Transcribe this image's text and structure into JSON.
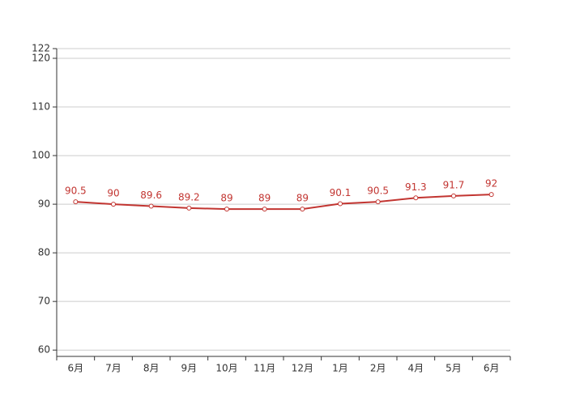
{
  "chart_data": {
    "type": "line",
    "categories": [
      "6月",
      "7月",
      "8月",
      "9月",
      "10月",
      "11月",
      "12月",
      "1月",
      "2月",
      "4月",
      "5月",
      "6月"
    ],
    "series": [
      {
        "color": "#c23531",
        "values": [
          90.5,
          90,
          89.6,
          89.2,
          89,
          89,
          89,
          90.1,
          90.5,
          91.3,
          91.7,
          92
        ]
      }
    ],
    "ylim": [
      58.7,
      122
    ],
    "yticks": [
      60,
      70,
      80,
      90,
      100,
      110,
      120,
      122
    ],
    "grid": true
  }
}
